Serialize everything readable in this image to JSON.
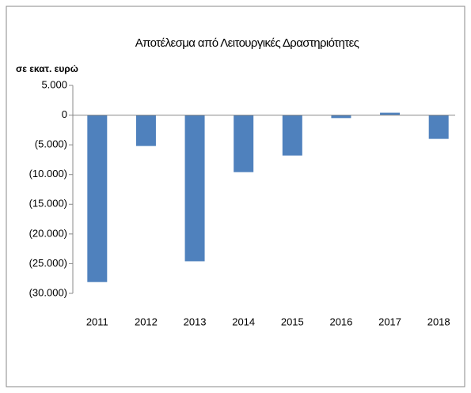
{
  "chart_data": {
    "type": "bar",
    "title": "Αποτέλεσμα από Λειτουργικές Δραστηριότητες",
    "y_label": "σε εκατ. ευρώ",
    "categories": [
      "2011",
      "2012",
      "2013",
      "2014",
      "2015",
      "2016",
      "2017",
      "2018"
    ],
    "values": [
      -28100,
      -5200,
      -24600,
      -9600,
      -6800,
      -500,
      400,
      -4000
    ],
    "color": "#4f81bd",
    "ylim": [
      -30000,
      5000
    ],
    "yticks": [
      {
        "value": 5000,
        "label": "5.000"
      },
      0,
      {
        "value": -5000,
        "label": "(5.000)"
      },
      {
        "value": -10000,
        "label": "(10.000)"
      },
      {
        "value": -15000,
        "label": "(15.000)"
      },
      {
        "value": -20000,
        "label": "(20.000)"
      },
      {
        "value": -25000,
        "label": "(25.000)"
      },
      {
        "value": -30000,
        "label": "(30.000)"
      }
    ],
    "grid": false
  }
}
